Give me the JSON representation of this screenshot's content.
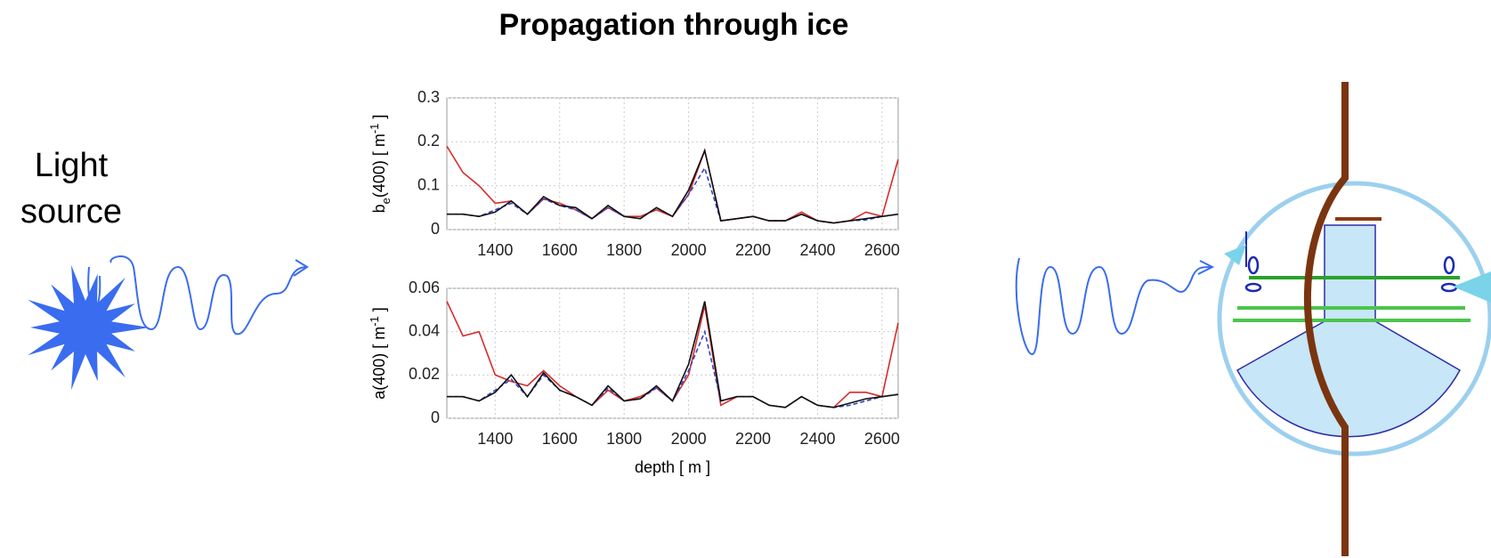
{
  "title": "Propagation through ice",
  "light_source": [
    "Light",
    "source"
  ],
  "chart_data": [
    {
      "type": "line",
      "ylabel": [
        "b",
        "e",
        "(400) [ m",
        "-1",
        " ]"
      ],
      "x": [
        1250,
        1300,
        1350,
        1400,
        1450,
        1500,
        1550,
        1600,
        1650,
        1700,
        1750,
        1800,
        1850,
        1900,
        1950,
        2000,
        2050,
        2100,
        2150,
        2200,
        2250,
        2300,
        2350,
        2400,
        2450,
        2500,
        2550,
        2600,
        2650
      ],
      "xlim": [
        1250,
        2650
      ],
      "xticks": [
        1400,
        1600,
        1800,
        2000,
        2200,
        2400,
        2600
      ],
      "ylim": [
        0,
        0.3
      ],
      "yticks": [
        0,
        0.1,
        0.2,
        0.3
      ],
      "grid": true,
      "series": [
        {
          "color": "#d62c2c",
          "dash": false,
          "values": [
            0.19,
            0.13,
            0.1,
            0.06,
            0.065,
            0.035,
            0.07,
            0.06,
            0.045,
            0.025,
            0.05,
            0.03,
            0.03,
            0.045,
            0.03,
            0.08,
            0.18,
            0.02,
            0.025,
            0.03,
            0.02,
            0.02,
            0.04,
            0.02,
            0.015,
            0.02,
            0.04,
            0.03,
            0.16
          ]
        },
        {
          "color": "#3046c8",
          "dash": true,
          "values": [
            0.035,
            0.035,
            0.03,
            0.045,
            0.06,
            0.035,
            0.07,
            0.055,
            0.045,
            0.025,
            0.05,
            0.03,
            0.025,
            0.05,
            0.03,
            0.08,
            0.14,
            0.02,
            0.025,
            0.03,
            0.02,
            0.02,
            0.035,
            0.02,
            0.015,
            0.02,
            0.022,
            0.03,
            0.035
          ]
        },
        {
          "color": "#111111",
          "dash": false,
          "values": [
            0.035,
            0.035,
            0.03,
            0.04,
            0.065,
            0.035,
            0.075,
            0.055,
            0.05,
            0.025,
            0.055,
            0.03,
            0.025,
            0.05,
            0.03,
            0.09,
            0.18,
            0.02,
            0.025,
            0.03,
            0.02,
            0.02,
            0.035,
            0.02,
            0.015,
            0.02,
            0.025,
            0.03,
            0.035
          ]
        }
      ]
    },
    {
      "type": "line",
      "ylabel": [
        "a(400) [ m",
        "-1",
        " ]"
      ],
      "xlabel": "depth [ m ]",
      "x": [
        1250,
        1300,
        1350,
        1400,
        1450,
        1500,
        1550,
        1600,
        1650,
        1700,
        1750,
        1800,
        1850,
        1900,
        1950,
        2000,
        2050,
        2100,
        2150,
        2200,
        2250,
        2300,
        2350,
        2400,
        2450,
        2500,
        2550,
        2600,
        2650
      ],
      "xlim": [
        1250,
        2650
      ],
      "xticks": [
        1400,
        1600,
        1800,
        2000,
        2200,
        2400,
        2600
      ],
      "ylim": [
        0,
        0.06
      ],
      "yticks": [
        0,
        0.02,
        0.04,
        0.06
      ],
      "grid": true,
      "series": [
        {
          "color": "#d62c2c",
          "dash": false,
          "values": [
            0.054,
            0.038,
            0.04,
            0.02,
            0.017,
            0.015,
            0.022,
            0.015,
            0.01,
            0.006,
            0.013,
            0.008,
            0.01,
            0.014,
            0.008,
            0.02,
            0.052,
            0.006,
            0.01,
            0.01,
            0.006,
            0.005,
            0.01,
            0.006,
            0.005,
            0.012,
            0.012,
            0.01,
            0.044
          ]
        },
        {
          "color": "#3046c8",
          "dash": true,
          "values": [
            0.01,
            0.01,
            0.008,
            0.013,
            0.018,
            0.01,
            0.02,
            0.013,
            0.01,
            0.006,
            0.014,
            0.008,
            0.009,
            0.014,
            0.008,
            0.022,
            0.04,
            0.008,
            0.01,
            0.01,
            0.006,
            0.005,
            0.01,
            0.006,
            0.005,
            0.006,
            0.008,
            0.01,
            0.011
          ]
        },
        {
          "color": "#111111",
          "dash": false,
          "values": [
            0.01,
            0.01,
            0.008,
            0.012,
            0.02,
            0.01,
            0.021,
            0.013,
            0.01,
            0.006,
            0.015,
            0.008,
            0.009,
            0.015,
            0.008,
            0.025,
            0.054,
            0.008,
            0.01,
            0.01,
            0.006,
            0.005,
            0.01,
            0.006,
            0.005,
            0.007,
            0.009,
            0.01,
            0.011
          ]
        }
      ]
    }
  ]
}
